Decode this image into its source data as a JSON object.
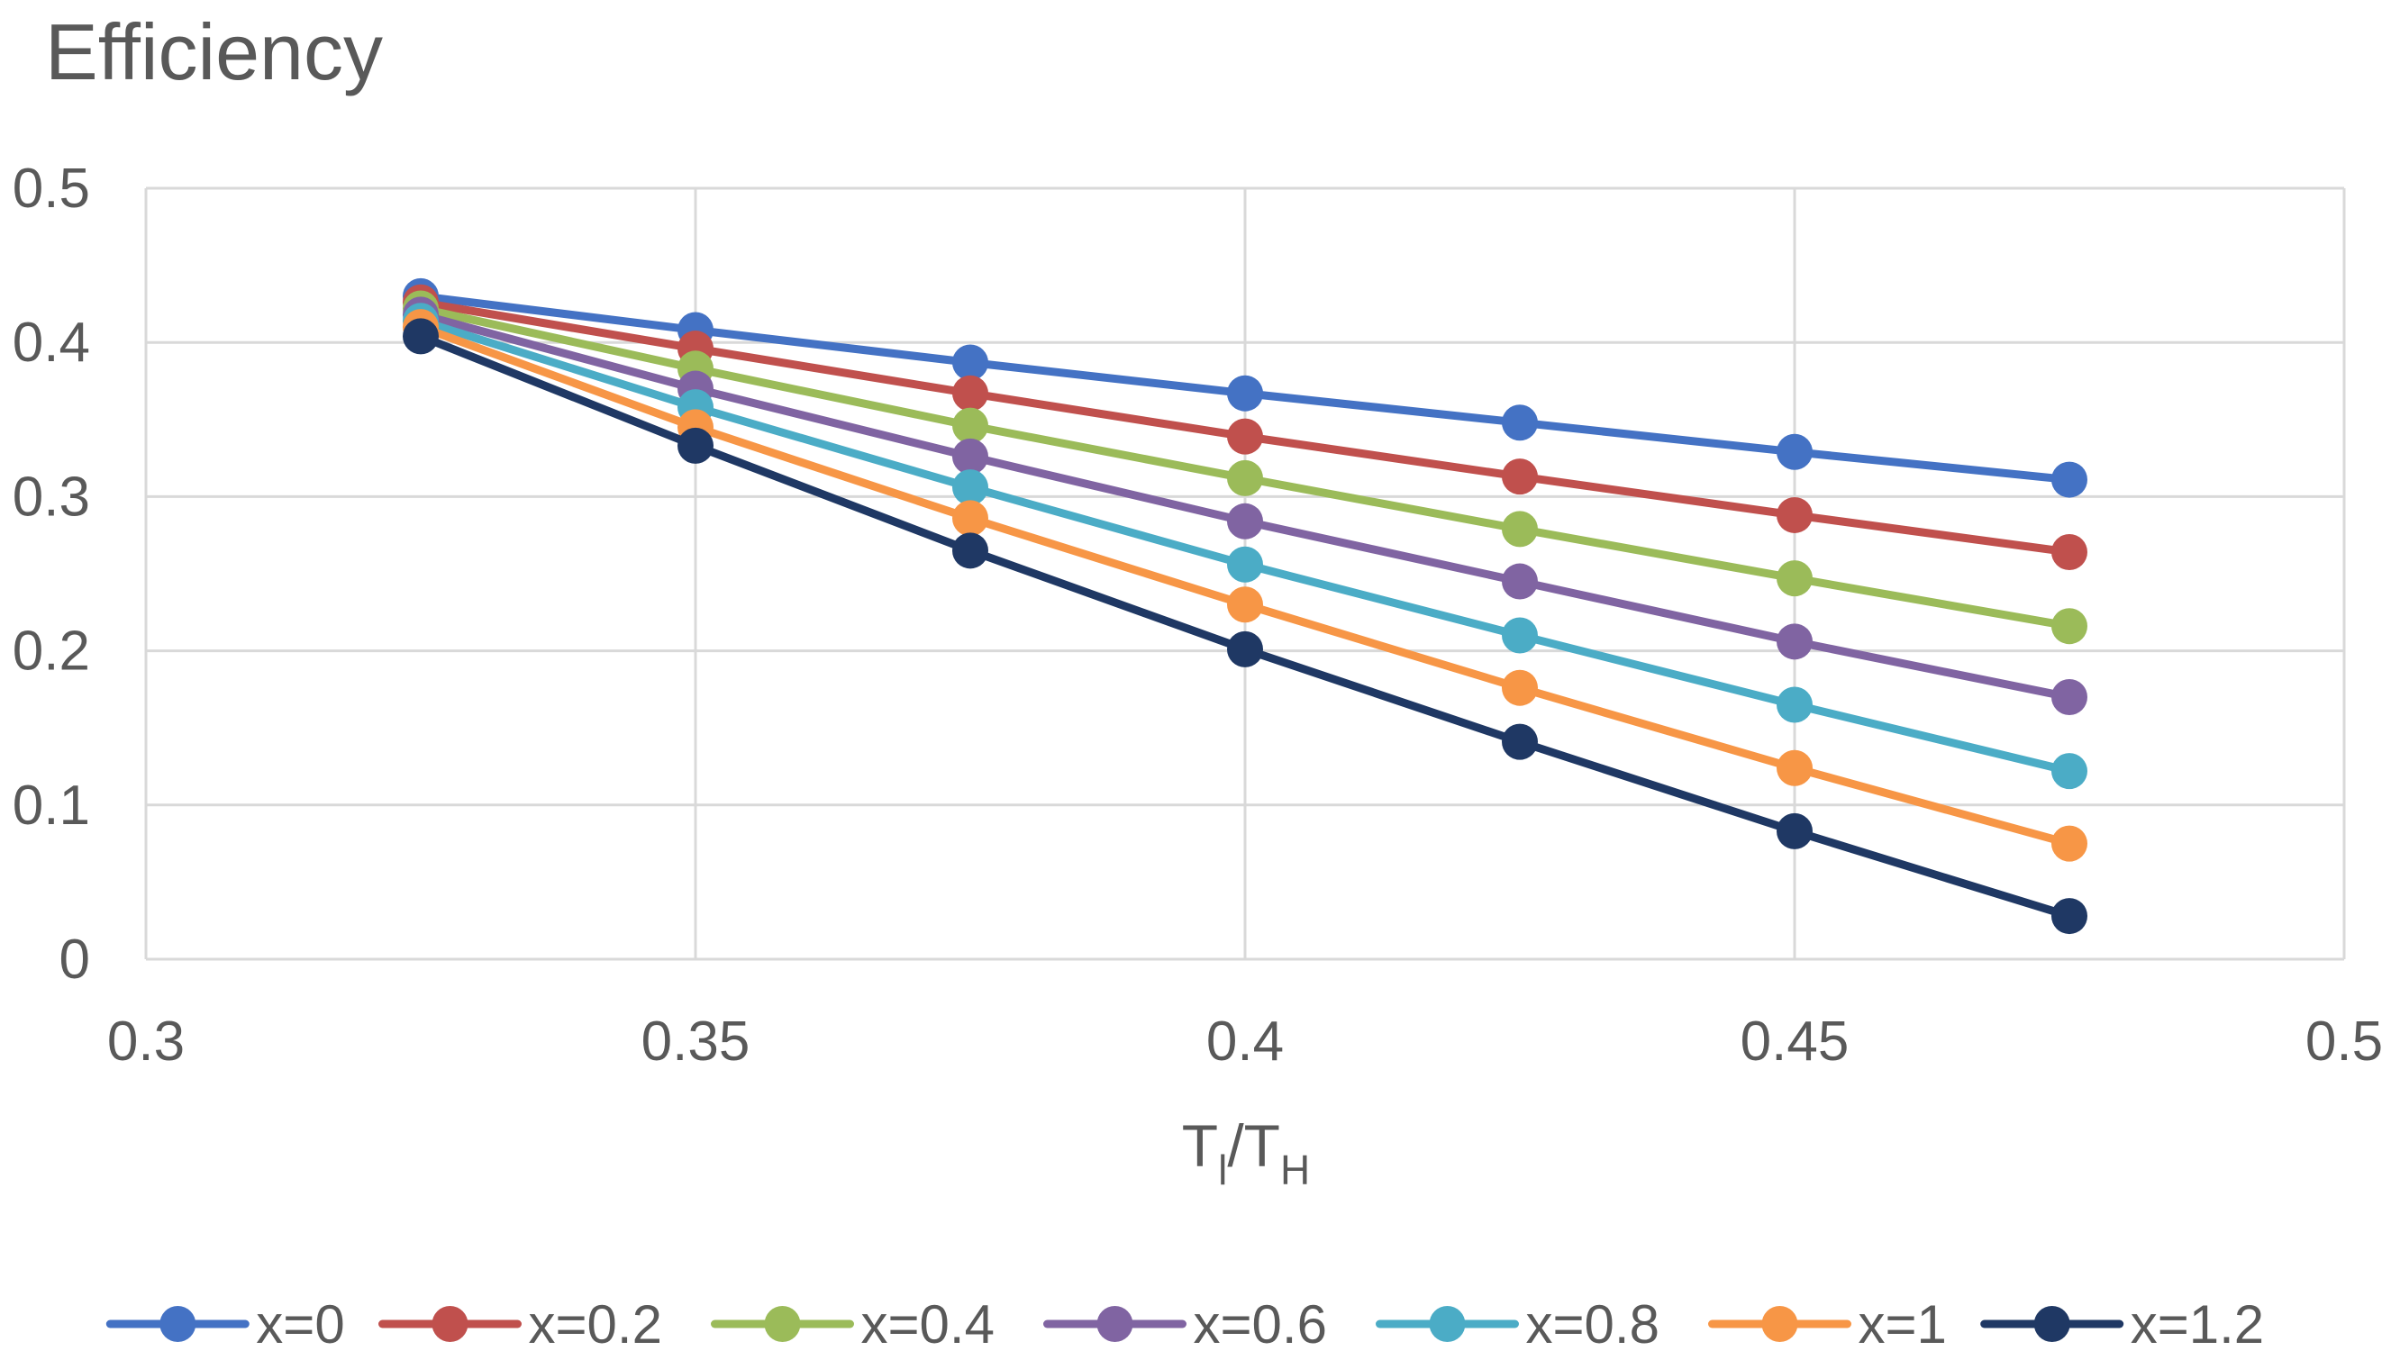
{
  "chart_data": {
    "type": "line",
    "title": "Efficiency",
    "xlabel": {
      "main1": "T",
      "sub1": "l",
      "sep": "/",
      "main2": "T",
      "sub2": "H"
    },
    "ylabel": "",
    "xlim": [
      0.3,
      0.5
    ],
    "ylim": [
      0,
      0.5
    ],
    "x_ticks": [
      "0.3",
      "0.35",
      "0.4",
      "0.45",
      "0.5"
    ],
    "y_ticks": [
      "0",
      "0.1",
      "0.2",
      "0.3",
      "0.4",
      "0.5"
    ],
    "grid": true,
    "legend_position": "bottom",
    "x": [
      0.325,
      0.35,
      0.375,
      0.4,
      0.425,
      0.45,
      0.475
    ],
    "series": [
      {
        "name": "x=0",
        "color": "#4472C4",
        "values": [
          0.43,
          0.408,
          0.387,
          0.367,
          0.348,
          0.329,
          0.311
        ]
      },
      {
        "name": "x=0.2",
        "color": "#C0504D",
        "values": [
          0.426,
          0.396,
          0.367,
          0.339,
          0.313,
          0.288,
          0.264
        ]
      },
      {
        "name": "x=0.4",
        "color": "#9BBB59",
        "values": [
          0.422,
          0.383,
          0.346,
          0.312,
          0.279,
          0.247,
          0.216
        ]
      },
      {
        "name": "x=0.6",
        "color": "#8064A2",
        "values": [
          0.418,
          0.37,
          0.326,
          0.284,
          0.245,
          0.206,
          0.17
        ]
      },
      {
        "name": "x=0.8",
        "color": "#4BACC6",
        "values": [
          0.414,
          0.358,
          0.306,
          0.256,
          0.21,
          0.165,
          0.122
        ]
      },
      {
        "name": "x=1",
        "color": "#F79646",
        "values": [
          0.41,
          0.345,
          0.286,
          0.23,
          0.176,
          0.124,
          0.075
        ]
      },
      {
        "name": "x=1.2",
        "color": "#1F3864",
        "values": [
          0.404,
          0.333,
          0.265,
          0.201,
          0.141,
          0.083,
          0.028
        ]
      }
    ]
  }
}
